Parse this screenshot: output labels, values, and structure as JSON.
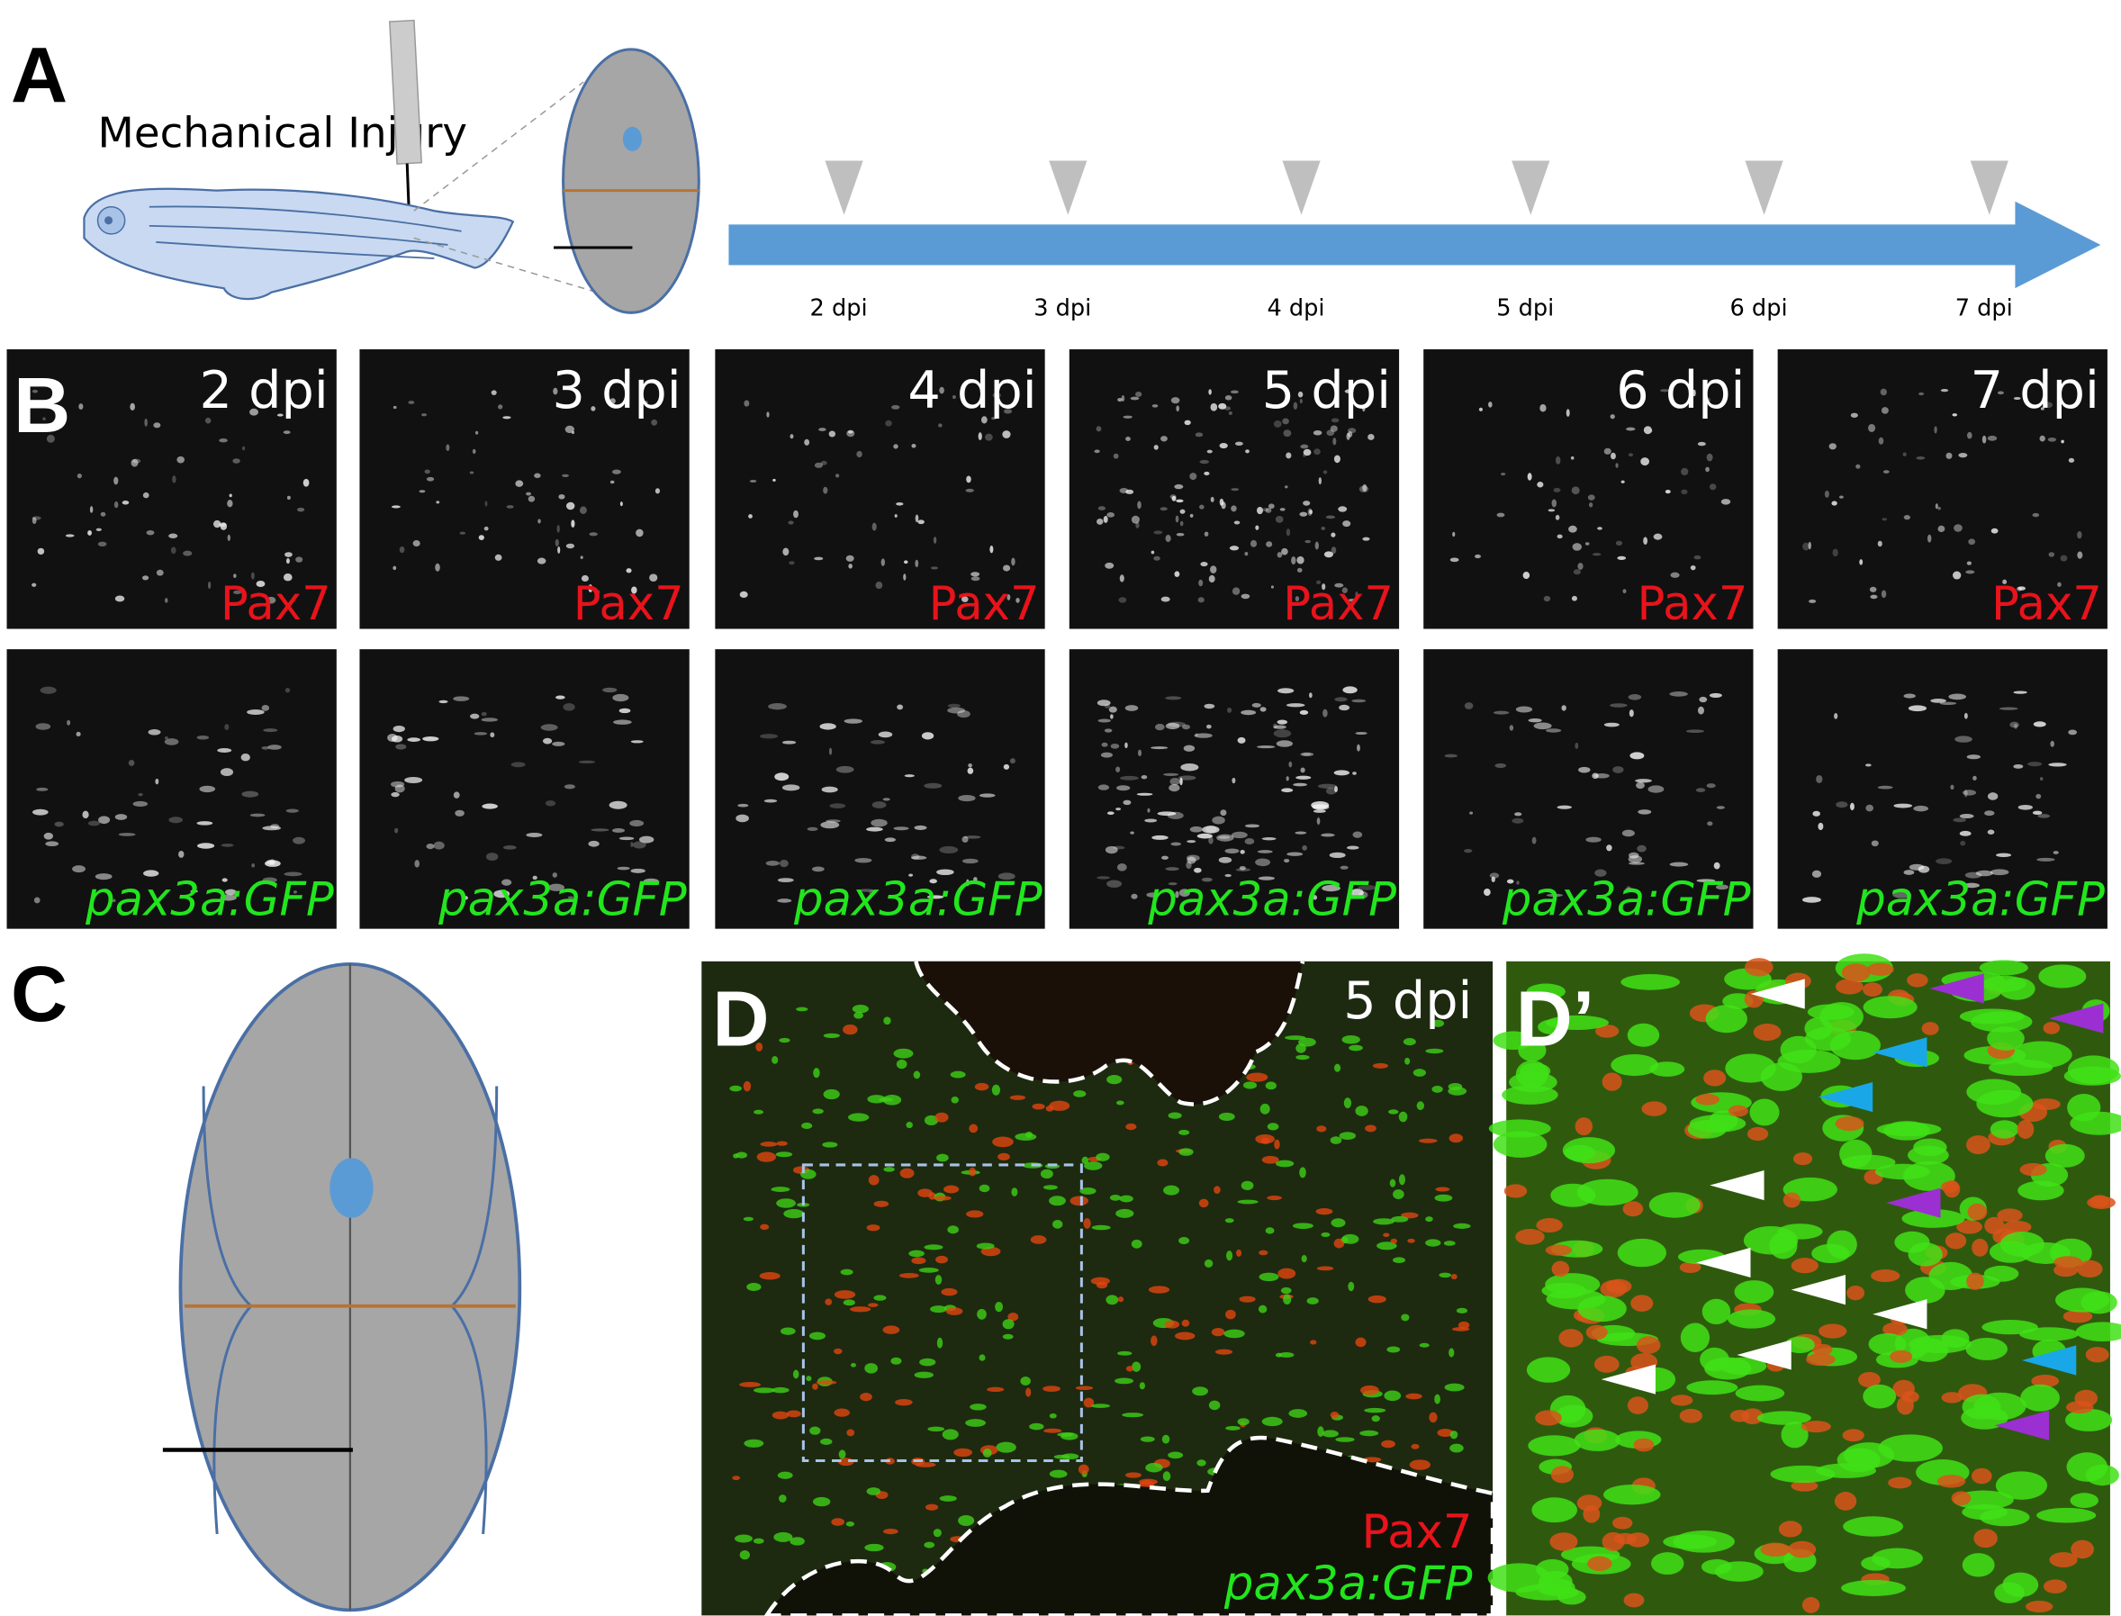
{
  "panel_a": {
    "label": "A",
    "injury_label": "Mechanical Injury",
    "timepoints": [
      "2 dpi",
      "3 dpi",
      "4 dpi",
      "5 dpi",
      "6 dpi",
      "7 dpi"
    ]
  },
  "panel_b": {
    "label": "B",
    "columns": [
      {
        "time": "2 dpi",
        "top_stain": "Pax7",
        "bottom_stain": "pax3a:GFP"
      },
      {
        "time": "3 dpi",
        "top_stain": "Pax7",
        "bottom_stain": "pax3a:GFP"
      },
      {
        "time": "4 dpi",
        "top_stain": "Pax7",
        "bottom_stain": "pax3a:GFP"
      },
      {
        "time": "5 dpi",
        "top_stain": "Pax7",
        "bottom_stain": "pax3a:GFP"
      },
      {
        "time": "6 dpi",
        "top_stain": "Pax7",
        "bottom_stain": "pax3a:GFP"
      },
      {
        "time": "7 dpi",
        "top_stain": "Pax7",
        "bottom_stain": "pax3a:GFP"
      }
    ]
  },
  "panel_c": {
    "label": "C"
  },
  "panel_d": {
    "label": "D",
    "time": "5 dpi",
    "stains": [
      "Pax7",
      "pax3a:GFP"
    ]
  },
  "panel_d_prime": {
    "label": "D’"
  }
}
